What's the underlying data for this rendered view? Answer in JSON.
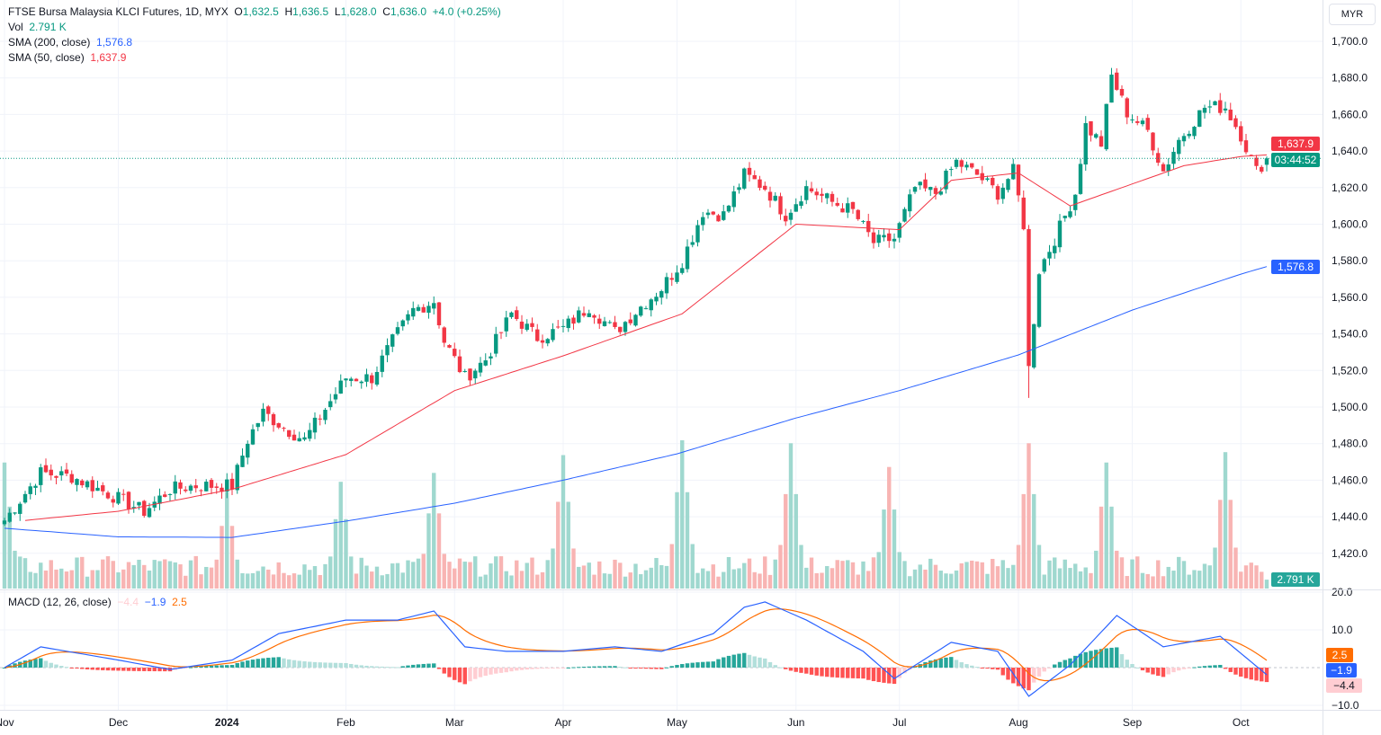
{
  "header": {
    "symbol": "FTSE Bursa Malaysia KLCI Futures, 1D, MYX",
    "o_label": "O",
    "o": "1,632.5",
    "h_label": "H",
    "h": "1,636.5",
    "l_label": "L",
    "l": "1,628.0",
    "c_label": "C",
    "c": "1,636.0",
    "change": "+4.0 (+0.25%)",
    "vol_label": "Vol",
    "vol": "2.791 K",
    "sma200_label": "SMA (200, close)",
    "sma200": "1,576.8",
    "sma50_label": "SMA (50, close)",
    "sma50": "1,637.9",
    "macd_label": "MACD (12, 26, close)",
    "macd_hist": "−4.4",
    "macd_line": "−1.9",
    "macd_signal": "2.5"
  },
  "currency": "MYR",
  "tags": {
    "sma50": "1,637.9",
    "countdown": "03:44:52",
    "sma200": "1,576.8",
    "volume": "2.791 K",
    "signal": "2.5",
    "macd": "−1.9",
    "hist": "−4.4"
  },
  "colors": {
    "up": "#089981",
    "down": "#f23645",
    "sma200": "#2962ff",
    "sma50": "#f23645",
    "macd": "#2962ff",
    "signal": "#ff6d00"
  },
  "chart_data": {
    "type": "candlestick",
    "title": "FTSE Bursa Malaysia KLCI Futures, 1D, MYX",
    "x_range": [
      "2023-11-01",
      "2024-10-08"
    ],
    "y_range": [
      1410,
      1710
    ],
    "y_ticks": [
      "1,700.0",
      "1,680.0",
      "1,660.0",
      "1,640.0",
      "1,620.0",
      "1,600.0",
      "1,580.0",
      "1,560.0",
      "1,540.0",
      "1,520.0",
      "1,500.0",
      "1,480.0",
      "1,460.0",
      "1,440.0",
      "1,420.0"
    ],
    "y_tick_values": [
      1700,
      1680,
      1660,
      1640,
      1620,
      1600,
      1580,
      1560,
      1540,
      1520,
      1500,
      1480,
      1460,
      1440,
      1420
    ],
    "x_ticks": [
      {
        "label": "Nov",
        "date": "2023-11-01"
      },
      {
        "label": "Dec",
        "date": "2023-12-01"
      },
      {
        "label": "2024",
        "date": "2024-01-01"
      },
      {
        "label": "Feb",
        "date": "2024-02-01"
      },
      {
        "label": "Mar",
        "date": "2024-03-01"
      },
      {
        "label": "Apr",
        "date": "2024-04-01"
      },
      {
        "label": "May",
        "date": "2024-05-01"
      },
      {
        "label": "Jun",
        "date": "2024-06-01"
      },
      {
        "label": "Jul",
        "date": "2024-07-01"
      },
      {
        "label": "Aug",
        "date": "2024-08-01"
      },
      {
        "label": "Sep",
        "date": "2024-09-01"
      },
      {
        "label": "Oct",
        "date": "2024-10-01"
      }
    ],
    "close_anchors": [
      [
        "2023-11-01",
        1438
      ],
      [
        "2023-11-10",
        1464
      ],
      [
        "2023-11-20",
        1462
      ],
      [
        "2023-12-01",
        1450
      ],
      [
        "2023-12-08",
        1443
      ],
      [
        "2023-12-15",
        1455
      ],
      [
        "2023-12-22",
        1457
      ],
      [
        "2024-01-02",
        1457
      ],
      [
        "2024-01-05",
        1482
      ],
      [
        "2024-01-10",
        1497
      ],
      [
        "2024-01-17",
        1487
      ],
      [
        "2024-01-22",
        1482
      ],
      [
        "2024-01-26",
        1499
      ],
      [
        "2024-02-01",
        1516
      ],
      [
        "2024-02-08",
        1516
      ],
      [
        "2024-02-14",
        1536
      ],
      [
        "2024-02-20",
        1553
      ],
      [
        "2024-02-26",
        1558
      ],
      [
        "2024-02-28",
        1536
      ],
      [
        "2024-03-05",
        1516
      ],
      [
        "2024-03-11",
        1526
      ],
      [
        "2024-03-18",
        1551
      ],
      [
        "2024-03-25",
        1538
      ],
      [
        "2024-04-01",
        1543
      ],
      [
        "2024-04-08",
        1555
      ],
      [
        "2024-04-15",
        1541
      ],
      [
        "2024-04-22",
        1555
      ],
      [
        "2024-04-26",
        1565
      ],
      [
        "2024-05-02",
        1580
      ],
      [
        "2024-05-08",
        1607
      ],
      [
        "2024-05-14",
        1605
      ],
      [
        "2024-05-20",
        1627
      ],
      [
        "2024-05-24",
        1620
      ],
      [
        "2024-05-30",
        1605
      ],
      [
        "2024-06-05",
        1620
      ],
      [
        "2024-06-12",
        1612
      ],
      [
        "2024-06-18",
        1607
      ],
      [
        "2024-06-24",
        1590
      ],
      [
        "2024-06-28",
        1592
      ],
      [
        "2024-07-04",
        1620
      ],
      [
        "2024-07-10",
        1617
      ],
      [
        "2024-07-16",
        1634
      ],
      [
        "2024-07-22",
        1627
      ],
      [
        "2024-07-26",
        1617
      ],
      [
        "2024-07-31",
        1629
      ],
      [
        "2024-08-02",
        1600
      ],
      [
        "2024-08-05",
        1521
      ],
      [
        "2024-08-07",
        1575
      ],
      [
        "2024-08-12",
        1592
      ],
      [
        "2024-08-16",
        1617
      ],
      [
        "2024-08-20",
        1654
      ],
      [
        "2024-08-23",
        1644
      ],
      [
        "2024-08-27",
        1681
      ],
      [
        "2024-08-30",
        1661
      ],
      [
        "2024-09-05",
        1651
      ],
      [
        "2024-09-10",
        1629
      ],
      [
        "2024-09-13",
        1646
      ],
      [
        "2024-09-20",
        1664
      ],
      [
        "2024-09-26",
        1664
      ],
      [
        "2024-10-01",
        1649
      ],
      [
        "2024-10-04",
        1629
      ],
      [
        "2024-10-08",
        1636
      ]
    ],
    "sma200": [
      [
        "2023-11-01",
        1433.7
      ],
      [
        "2023-12-01",
        1429
      ],
      [
        "2024-01-02",
        1428.7
      ],
      [
        "2024-02-01",
        1437.6
      ],
      [
        "2024-03-01",
        1447.4
      ],
      [
        "2024-04-01",
        1460
      ],
      [
        "2024-05-01",
        1474.4
      ],
      [
        "2024-06-03",
        1494
      ],
      [
        "2024-07-01",
        1509
      ],
      [
        "2024-08-01",
        1528.5
      ],
      [
        "2024-09-02",
        1553
      ],
      [
        "2024-10-01",
        1572.7
      ],
      [
        "2024-10-08",
        1576.8
      ]
    ],
    "sma50": [
      [
        "2023-11-07",
        1438
      ],
      [
        "2023-12-01",
        1443
      ],
      [
        "2024-01-02",
        1455
      ],
      [
        "2024-02-01",
        1474
      ],
      [
        "2024-03-01",
        1509
      ],
      [
        "2024-04-01",
        1528
      ],
      [
        "2024-05-02",
        1551
      ],
      [
        "2024-06-03",
        1600
      ],
      [
        "2024-07-01",
        1597
      ],
      [
        "2024-07-15",
        1624
      ],
      [
        "2024-08-01",
        1628
      ],
      [
        "2024-08-15",
        1610
      ],
      [
        "2024-09-02",
        1622
      ],
      [
        "2024-09-16",
        1632
      ],
      [
        "2024-10-01",
        1637
      ],
      [
        "2024-10-08",
        1637.9
      ]
    ],
    "volume_spikes": [
      [
        "2023-11-01",
        0.85
      ],
      [
        "2024-01-01",
        0.65
      ],
      [
        "2024-01-31",
        0.72
      ],
      [
        "2024-02-26",
        0.78
      ],
      [
        "2024-04-01",
        0.9
      ],
      [
        "2024-05-02",
        1.0
      ],
      [
        "2024-05-31",
        0.98
      ],
      [
        "2024-06-27",
        0.82
      ],
      [
        "2024-08-05",
        0.98
      ],
      [
        "2024-08-26",
        0.85
      ],
      [
        "2024-09-26",
        0.92
      ]
    ],
    "macd": {
      "y_ticks": [
        "20.0",
        "10.0",
        "−10.0"
      ],
      "y_tick_values": [
        20,
        10,
        -10
      ],
      "line_anchors": [
        [
          "2023-11-01",
          0
        ],
        [
          "2023-11-10",
          5.5
        ],
        [
          "2023-12-01",
          2
        ],
        [
          "2023-12-15",
          -0.5
        ],
        [
          "2024-01-02",
          2
        ],
        [
          "2024-01-15",
          9
        ],
        [
          "2024-02-01",
          12.6
        ],
        [
          "2024-02-15",
          12.6
        ],
        [
          "2024-02-26",
          15
        ],
        [
          "2024-03-05",
          5.5
        ],
        [
          "2024-03-15",
          4.3
        ],
        [
          "2024-04-01",
          4.3
        ],
        [
          "2024-04-15",
          5.5
        ],
        [
          "2024-04-26",
          4.3
        ],
        [
          "2024-05-10",
          9
        ],
        [
          "2024-05-20",
          16
        ],
        [
          "2024-05-24",
          17.4
        ],
        [
          "2024-06-05",
          12.6
        ],
        [
          "2024-06-20",
          4.3
        ],
        [
          "2024-06-28",
          -2.9
        ],
        [
          "2024-07-15",
          6.7
        ],
        [
          "2024-07-26",
          4.3
        ],
        [
          "2024-08-05",
          -7.6
        ],
        [
          "2024-08-15",
          0.7
        ],
        [
          "2024-08-28",
          13.8
        ],
        [
          "2024-09-10",
          5.5
        ],
        [
          "2024-09-25",
          8.3
        ],
        [
          "2024-10-08",
          -1.9
        ]
      ]
    }
  }
}
